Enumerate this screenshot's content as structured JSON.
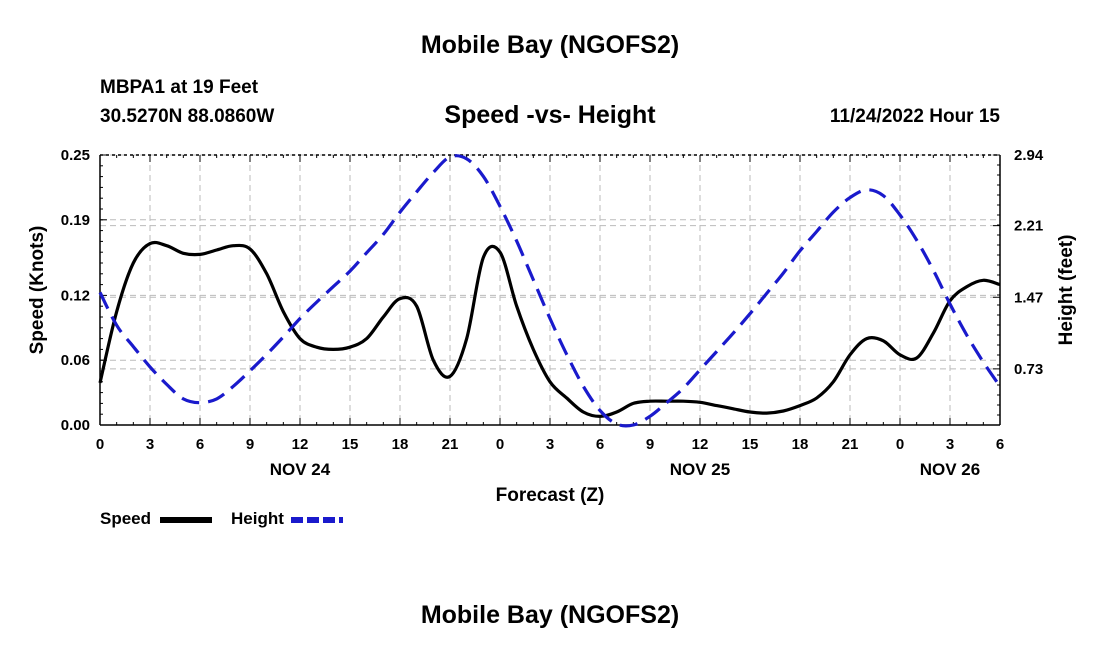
{
  "header": {
    "title": "Mobile Bay (NGOFS2)",
    "station": "MBPA1 at 19 Feet",
    "coords": "30.5270N  88.0860W",
    "chart_title": "Speed -vs- Height",
    "timestamp": "11/24/2022 Hour 15",
    "bottom_title": "Mobile Bay (NGOFS2)"
  },
  "legend": {
    "speed_label": "Speed",
    "height_label": "Height"
  },
  "colors": {
    "speed": "#000000",
    "height": "#1a1acc",
    "grid": "#bbbbbb"
  },
  "chart_data": {
    "type": "line",
    "xlabel": "Forecast (Z)",
    "ylabel": "Speed (Knots)",
    "y2label": "Height (feet)",
    "xlim": [
      0,
      54
    ],
    "ylim": [
      0,
      0.25
    ],
    "y2lim": [
      0.15,
      2.94
    ],
    "x_ticks": [
      0,
      3,
      6,
      9,
      12,
      15,
      18,
      21,
      24,
      27,
      30,
      33,
      36,
      39,
      42,
      45,
      48,
      51,
      54
    ],
    "x_tick_labels": [
      "0",
      "3",
      "6",
      "9",
      "12",
      "15",
      "18",
      "21",
      "0",
      "3",
      "6",
      "9",
      "12",
      "15",
      "18",
      "21",
      "0",
      "3",
      "6"
    ],
    "date_labels": [
      {
        "x": 12,
        "label": "NOV 24"
      },
      {
        "x": 36,
        "label": "NOV 25"
      },
      {
        "x": 51,
        "label": "NOV 26"
      }
    ],
    "y_ticks": [
      0.0,
      0.06,
      0.12,
      0.19,
      0.25
    ],
    "y_tick_labels": [
      "0.00",
      "0.06",
      "0.12",
      "0.19",
      "0.25"
    ],
    "y2_ticks": [
      0.73,
      1.47,
      2.21,
      2.94
    ],
    "y2_tick_labels": [
      "0.73",
      "1.47",
      "2.21",
      "2.94"
    ],
    "grid": true,
    "legend_position": "bottom-left",
    "series": [
      {
        "name": "Speed",
        "axis": "left",
        "style": "solid",
        "x": [
          0,
          1,
          2,
          3,
          4,
          5,
          6,
          7,
          8,
          9,
          10,
          11,
          12,
          13,
          14,
          15,
          16,
          17,
          18,
          19,
          20,
          21,
          22,
          23,
          24,
          25,
          26,
          27,
          28,
          29,
          30,
          31,
          32,
          33,
          34,
          35,
          36,
          37,
          38,
          39,
          40,
          41,
          42,
          43,
          44,
          45,
          46,
          47,
          48,
          49,
          50,
          51,
          52,
          53,
          54
        ],
        "y": [
          0.039,
          0.105,
          0.15,
          0.168,
          0.166,
          0.159,
          0.158,
          0.162,
          0.166,
          0.163,
          0.14,
          0.105,
          0.08,
          0.072,
          0.07,
          0.072,
          0.08,
          0.1,
          0.117,
          0.11,
          0.06,
          0.045,
          0.08,
          0.155,
          0.16,
          0.11,
          0.07,
          0.04,
          0.025,
          0.012,
          0.008,
          0.012,
          0.02,
          0.022,
          0.022,
          0.022,
          0.021,
          0.018,
          0.015,
          0.012,
          0.011,
          0.013,
          0.018,
          0.025,
          0.04,
          0.065,
          0.08,
          0.078,
          0.065,
          0.062,
          0.085,
          0.115,
          0.128,
          0.134,
          0.13
        ]
      },
      {
        "name": "Height",
        "axis": "right",
        "style": "dashed",
        "x": [
          0,
          1,
          2,
          3,
          4,
          5,
          6,
          7,
          8,
          9,
          10,
          11,
          12,
          13,
          14,
          15,
          16,
          17,
          18,
          19,
          20,
          21,
          22,
          23,
          24,
          25,
          26,
          27,
          28,
          29,
          30,
          31,
          32,
          33,
          34,
          35,
          36,
          37,
          38,
          39,
          40,
          41,
          42,
          43,
          44,
          45,
          46,
          47,
          48,
          49,
          50,
          51,
          52,
          53,
          54
        ],
        "y": [
          1.52,
          1.18,
          0.96,
          0.75,
          0.57,
          0.42,
          0.38,
          0.42,
          0.55,
          0.71,
          0.88,
          1.06,
          1.25,
          1.42,
          1.58,
          1.74,
          1.93,
          2.12,
          2.35,
          2.56,
          2.76,
          2.92,
          2.9,
          2.72,
          2.41,
          2.05,
          1.65,
          1.25,
          0.88,
          0.55,
          0.3,
          0.16,
          0.15,
          0.24,
          0.38,
          0.53,
          0.72,
          0.91,
          1.1,
          1.3,
          1.51,
          1.72,
          1.95,
          2.15,
          2.35,
          2.5,
          2.58,
          2.52,
          2.32,
          2.06,
          1.75,
          1.4,
          1.08,
          0.8,
          0.55
        ]
      }
    ]
  }
}
